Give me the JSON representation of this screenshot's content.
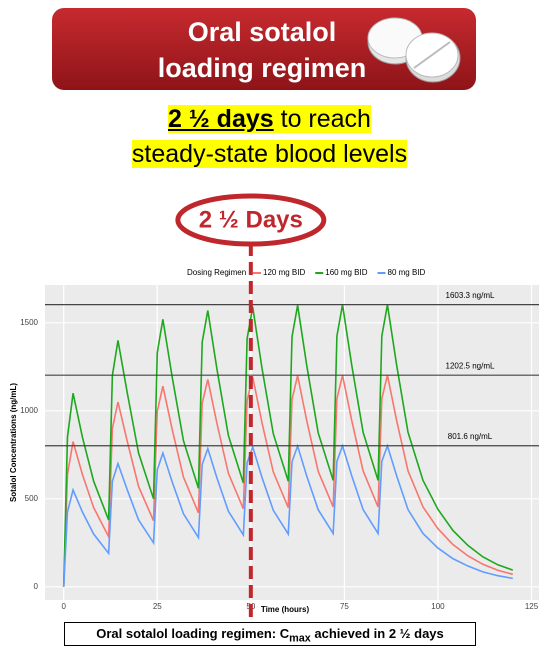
{
  "header": {
    "title_lines": [
      "Oral sotalol",
      "loading regimen"
    ]
  },
  "subtitle": {
    "emphasis": "2 ½ days",
    "line1_rest": " to reach",
    "line2": "steady-state blood levels"
  },
  "footer": {
    "before": "Oral sotalol loading regimen: C",
    "subscript": "max",
    "after": " achieved in 2 ½ days"
  },
  "chart_data": {
    "type": "line",
    "legend_title": "Dosing Regimen",
    "x_label": "Time (hours)",
    "y_label": "Sotalol Concentrations (ng/mL)",
    "xlim": [
      -5,
      127
    ],
    "ylim": [
      -75,
      1715
    ],
    "xticks": [
      0,
      25,
      50,
      75,
      100,
      125
    ],
    "yticks": [
      0,
      500,
      1000,
      1500
    ],
    "grid": true,
    "annotation": {
      "text": "2 ½ Days",
      "x": 50,
      "color": "#c0272d"
    },
    "reference_lines": [
      {
        "value": 1603.3,
        "label": "1603.3 ng/mL"
      },
      {
        "value": 1202.5,
        "label": "1202.5 ng/mL"
      },
      {
        "value": 801.6,
        "label": "801.6 ng/mL"
      }
    ],
    "x": [
      0,
      1,
      2.5,
      5,
      8,
      12,
      13,
      14.5,
      17,
      20,
      24,
      25,
      26.5,
      29,
      32,
      36,
      37,
      38.5,
      41,
      44,
      48,
      49,
      50.5,
      53,
      56,
      60,
      61,
      62.5,
      65,
      68,
      72,
      73,
      74.5,
      77,
      80,
      84,
      85,
      86.5,
      89,
      92,
      96,
      100,
      104,
      108,
      112,
      116,
      120
    ],
    "series": [
      {
        "name": "120 mg BID",
        "color": "#f8766d",
        "values": [
          0,
          638,
          825,
          638,
          450,
          285,
          900,
          1050,
          825,
          570,
          375,
          998,
          1140,
          893,
          623,
          420,
          1043,
          1178,
          923,
          645,
          443,
          1058,
          1193,
          930,
          653,
          450,
          1065,
          1200,
          938,
          656,
          454,
          1069,
          1202,
          941,
          659,
          454,
          1069,
          1202,
          941,
          659,
          454,
          330,
          240,
          176,
          128,
          94,
          71
        ]
      },
      {
        "name": "160 mg BID",
        "color": "#1ea81e",
        "values": [
          0,
          850,
          1100,
          850,
          600,
          380,
          1200,
          1400,
          1100,
          760,
          500,
          1330,
          1520,
          1190,
          830,
          560,
          1390,
          1570,
          1230,
          860,
          590,
          1410,
          1590,
          1240,
          870,
          600,
          1420,
          1600,
          1250,
          875,
          605,
          1425,
          1603,
          1255,
          878,
          605,
          1425,
          1603,
          1255,
          878,
          605,
          440,
          320,
          235,
          170,
          125,
          95
        ]
      },
      {
        "name": "80 mg BID",
        "color": "#619cff",
        "values": [
          0,
          425,
          550,
          425,
          300,
          190,
          600,
          700,
          550,
          380,
          250,
          665,
          760,
          595,
          415,
          280,
          695,
          785,
          615,
          430,
          295,
          705,
          795,
          620,
          435,
          300,
          710,
          800,
          625,
          438,
          303,
          713,
          801,
          628,
          439,
          303,
          713,
          801,
          628,
          439,
          303,
          220,
          160,
          118,
          85,
          63,
          48
        ]
      }
    ]
  }
}
